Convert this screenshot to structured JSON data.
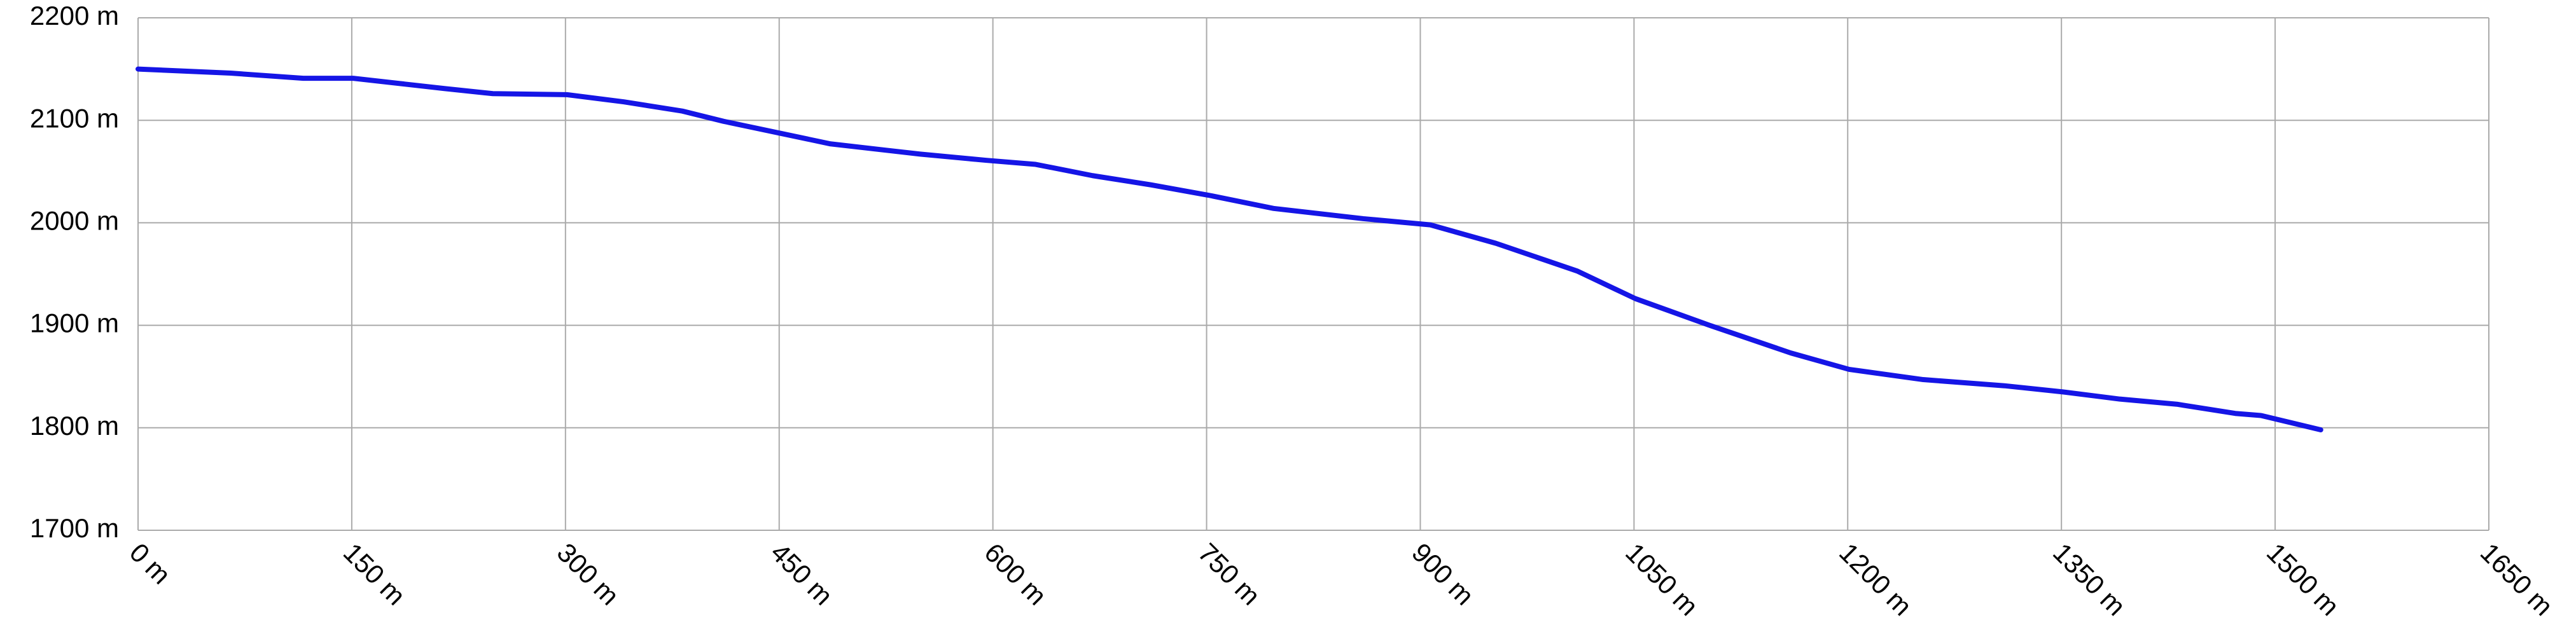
{
  "chart_data": {
    "type": "line",
    "x": [
      0,
      65,
      116,
      151,
      215,
      249,
      301,
      341,
      382,
      411,
      486,
      549,
      595,
      630,
      670,
      711,
      751,
      797,
      860,
      907,
      953,
      1010,
      1051,
      1103,
      1160,
      1201,
      1253,
      1310,
      1351,
      1391,
      1431,
      1472,
      1490,
      1532
    ],
    "values": [
      2150,
      2146,
      2141,
      2141,
      2131,
      2126,
      2125,
      2118,
      2109,
      2099,
      2077,
      2067,
      2061,
      2057,
      2046,
      2037,
      2027,
      2014,
      2004,
      1998,
      1980,
      1953,
      1926,
      1900,
      1873,
      1857,
      1847,
      1841,
      1835,
      1828,
      1823,
      1814,
      1812,
      1798
    ],
    "color": "#1515e6",
    "xlim": [
      0,
      1650
    ],
    "ylim": [
      1700,
      2200
    ],
    "xticks": [
      {
        "value": 0,
        "label": "0 m"
      },
      {
        "value": 150,
        "label": "150 m"
      },
      {
        "value": 300,
        "label": "300 m"
      },
      {
        "value": 450,
        "label": "450 m"
      },
      {
        "value": 600,
        "label": "600 m"
      },
      {
        "value": 750,
        "label": "750 m"
      },
      {
        "value": 900,
        "label": "900 m"
      },
      {
        "value": 1050,
        "label": "1050 m"
      },
      {
        "value": 1200,
        "label": "1200 m"
      },
      {
        "value": 1350,
        "label": "1350 m"
      },
      {
        "value": 1500,
        "label": "1500 m"
      },
      {
        "value": 1650,
        "label": "1650 m"
      }
    ],
    "yticks": [
      {
        "value": 1700,
        "label": "1700 m"
      },
      {
        "value": 1800,
        "label": "1800 m"
      },
      {
        "value": 1900,
        "label": "1900 m"
      },
      {
        "value": 2000,
        "label": "2000 m"
      },
      {
        "value": 2100,
        "label": "2100 m"
      },
      {
        "value": 2200,
        "label": "2200 m"
      }
    ],
    "grid": true
  }
}
